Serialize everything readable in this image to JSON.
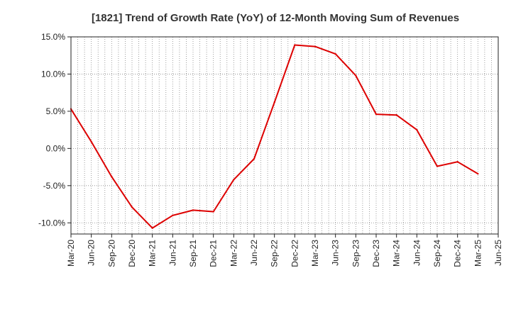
{
  "chart_data": {
    "type": "line",
    "title": "[1821]  Trend of Growth Rate (YoY) of 12-Month Moving Sum of Revenues",
    "xlabel": "",
    "ylabel": "",
    "x_ticks": [
      "Mar-20",
      "Jun-20",
      "Sep-20",
      "Dec-20",
      "Mar-21",
      "Jun-21",
      "Sep-21",
      "Dec-21",
      "Mar-22",
      "Jun-22",
      "Sep-22",
      "Dec-22",
      "Mar-23",
      "Jun-23",
      "Sep-23",
      "Dec-23",
      "Mar-24",
      "Jun-24",
      "Sep-24",
      "Dec-24",
      "Mar-25",
      "Jun-25"
    ],
    "y_ticks": [
      15,
      10,
      5,
      0,
      -5,
      -10
    ],
    "y_tick_labels": [
      "15.0%",
      "10.0%",
      "5.0%",
      "0.0%",
      "-5.0%",
      "-10.0%"
    ],
    "ylim": [
      -11.5,
      15.0
    ],
    "grid": true,
    "series": [
      {
        "color": "#dd0000",
        "x": [
          "Mar-20",
          "Jun-20",
          "Sep-20",
          "Dec-20",
          "Mar-21",
          "Jun-21",
          "Sep-21",
          "Dec-21",
          "Mar-22",
          "Jun-22",
          "Sep-22",
          "Dec-22",
          "Mar-23",
          "Jun-23",
          "Sep-23",
          "Dec-23",
          "Mar-24",
          "Jun-24",
          "Sep-24",
          "Dec-24",
          "Mar-25"
        ],
        "values": [
          5.3,
          0.9,
          -3.8,
          -7.9,
          -10.7,
          -9.0,
          -8.3,
          -8.5,
          -4.2,
          -1.4,
          6.2,
          13.9,
          13.7,
          12.7,
          9.8,
          4.6,
          4.5,
          2.5,
          -2.4,
          -1.8,
          -3.4
        ]
      }
    ]
  }
}
